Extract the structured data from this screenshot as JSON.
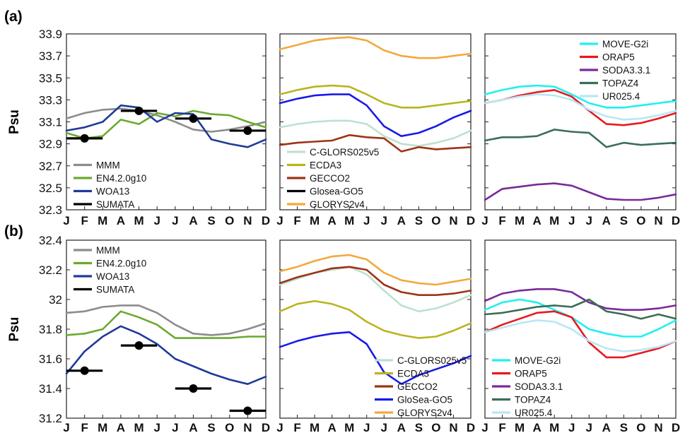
{
  "figure": {
    "colors": {
      "MMM": "#8c8c8c",
      "EN4.2.0g10": "#6aaa2e",
      "WOA13": "#1f3a9a",
      "SUMATA": "#000000",
      "C-GLORS025v5": "#bfe0cf",
      "ECDA3": "#b8b51e",
      "GECCO2": "#9c3415",
      "GloSea-GO5": "#1a1ae6",
      "GLORYS2v4": "#f2a93b",
      "MOVE-G2i": "#20f0f0",
      "ORAP5": "#e8191e",
      "SODA3.3.1": "#7a2a99",
      "TOPAZ4": "#3b6e56",
      "UR025.4": "#b9e6f5"
    }
  },
  "chart_data": [
    {
      "type": "line",
      "panel_label": "(a)",
      "ylabel": "Psu",
      "months": [
        "J",
        "F",
        "M",
        "A",
        "M",
        "J",
        "J",
        "A",
        "S",
        "O",
        "N",
        "D"
      ],
      "yticks": [
        33.9,
        33.7,
        33.5,
        33.3,
        33.1,
        32.9,
        32.7,
        32.5,
        32.3
      ],
      "ylim": [
        32.3,
        33.9
      ],
      "subplots": [
        {
          "legend": [
            "MMM",
            "EN4.2.0g10",
            "WOA13",
            "SUMATA"
          ],
          "legend_position": "bottom-left",
          "series": [
            {
              "name": "MMM",
              "values": [
                33.13,
                33.18,
                33.21,
                33.22,
                33.2,
                33.16,
                33.1,
                33.03,
                33.01,
                33.03,
                33.06,
                33.1
              ]
            },
            {
              "name": "EN4.2.0g10",
              "values": [
                33.0,
                32.95,
                32.97,
                33.12,
                33.08,
                33.18,
                33.15,
                33.2,
                33.17,
                33.16,
                33.1,
                33.05
              ]
            },
            {
              "name": "WOA13",
              "values": [
                33.02,
                33.05,
                33.1,
                33.25,
                33.23,
                33.1,
                33.18,
                33.17,
                32.94,
                32.9,
                32.87,
                32.94
              ]
            }
          ],
          "sumata": [
            {
              "x_month": 2,
              "value": 32.95
            },
            {
              "x_month": 5,
              "value": 33.2
            },
            {
              "x_month": 8,
              "value": 33.13
            },
            {
              "x_month": 11,
              "value": 33.02
            }
          ]
        },
        {
          "legend": [
            "C-GLORS025v5",
            "ECDA3",
            "GECCO2",
            "Glosea-GO5",
            "GLORYS2v4"
          ],
          "legend_position": "bottom-left",
          "series": [
            {
              "name": "C-GLORS025v5",
              "values": [
                33.05,
                33.08,
                33.1,
                33.11,
                33.11,
                33.08,
                32.97,
                32.9,
                32.88,
                32.91,
                32.95,
                33.02
              ]
            },
            {
              "name": "ECDA3",
              "values": [
                33.35,
                33.39,
                33.42,
                33.43,
                33.42,
                33.35,
                33.27,
                33.23,
                33.23,
                33.25,
                33.27,
                33.29
              ]
            },
            {
              "name": "GECCO2",
              "values": [
                32.89,
                32.91,
                32.92,
                32.93,
                32.98,
                32.96,
                32.95,
                32.83,
                32.87,
                32.85,
                32.86,
                32.87
              ]
            },
            {
              "name": "GloSea-GO5",
              "values": [
                33.27,
                33.31,
                33.34,
                33.35,
                33.35,
                33.25,
                33.06,
                32.97,
                33.0,
                33.06,
                33.14,
                33.2
              ]
            },
            {
              "name": "GLORYS2v4",
              "values": [
                33.76,
                33.8,
                33.84,
                33.86,
                33.87,
                33.84,
                33.75,
                33.7,
                33.68,
                33.68,
                33.7,
                33.72
              ]
            }
          ]
        },
        {
          "legend": [
            "MOVE-G2i",
            "ORAP5",
            "SODA3.3.1",
            "TOPAZ4",
            "UR025.4"
          ],
          "legend_position": "top-right",
          "series": [
            {
              "name": "MOVE-G2i",
              "values": [
                33.35,
                33.39,
                33.42,
                33.43,
                33.42,
                33.35,
                33.27,
                33.23,
                33.23,
                33.25,
                33.27,
                33.29
              ]
            },
            {
              "name": "ORAP5",
              "values": [
                33.27,
                33.3,
                33.34,
                33.37,
                33.39,
                33.33,
                33.2,
                33.08,
                33.07,
                33.09,
                33.13,
                33.18
              ]
            },
            {
              "name": "SODA3.3.1",
              "values": [
                32.39,
                32.49,
                32.51,
                32.53,
                32.54,
                32.52,
                32.46,
                32.4,
                32.39,
                32.39,
                32.41,
                32.44
              ]
            },
            {
              "name": "TOPAZ4",
              "values": [
                32.93,
                32.96,
                32.96,
                32.97,
                33.03,
                33.01,
                33.0,
                32.87,
                32.91,
                32.89,
                32.9,
                32.91
              ]
            },
            {
              "name": "UR025.4",
              "values": [
                33.27,
                33.3,
                33.33,
                33.35,
                33.34,
                33.3,
                33.21,
                33.15,
                33.12,
                33.13,
                33.16,
                33.2
              ]
            }
          ]
        }
      ]
    },
    {
      "type": "line",
      "panel_label": "(b)",
      "ylabel": "Psu",
      "months": [
        "J",
        "F",
        "M",
        "A",
        "M",
        "J",
        "J",
        "A",
        "S",
        "O",
        "N",
        "D"
      ],
      "yticks": [
        32.4,
        32.2,
        32,
        31.8,
        31.6,
        31.4,
        31.2
      ],
      "ylim": [
        31.2,
        32.4
      ],
      "subplots": [
        {
          "legend": [
            "MMM",
            "EN4.2.0g10",
            "WOA13",
            "SUMATA"
          ],
          "legend_position": "top-left",
          "series": [
            {
              "name": "MMM",
              "values": [
                31.91,
                31.92,
                31.95,
                31.96,
                31.96,
                31.91,
                31.83,
                31.77,
                31.76,
                31.77,
                31.8,
                31.84
              ]
            },
            {
              "name": "EN4.2.0g10",
              "values": [
                31.76,
                31.77,
                31.8,
                31.92,
                31.88,
                31.83,
                31.74,
                31.74,
                31.74,
                31.74,
                31.75,
                31.75
              ]
            },
            {
              "name": "WOA13",
              "values": [
                31.5,
                31.65,
                31.75,
                31.82,
                31.77,
                31.7,
                31.6,
                31.55,
                31.5,
                31.46,
                31.43,
                31.48
              ]
            }
          ],
          "sumata": [
            {
              "x_month": 2,
              "value": 31.52
            },
            {
              "x_month": 5,
              "value": 31.69
            },
            {
              "x_month": 8,
              "value": 31.4
            },
            {
              "x_month": 11,
              "value": 31.25
            }
          ]
        },
        {
          "legend": [
            "C-GLORS025v5",
            "ECDA3",
            "GECCO2",
            "GloSea-GO5",
            "GLORYS2v4"
          ],
          "legend_position": "bottom-right",
          "series": [
            {
              "name": "C-GLORS025v5",
              "values": [
                32.1,
                32.14,
                32.18,
                32.2,
                32.22,
                32.17,
                32.06,
                31.96,
                31.92,
                31.94,
                31.98,
                32.03
              ]
            },
            {
              "name": "ECDA3",
              "values": [
                31.92,
                31.97,
                31.99,
                31.97,
                31.93,
                31.85,
                31.79,
                31.76,
                31.74,
                31.75,
                31.79,
                31.84
              ]
            },
            {
              "name": "GECCO2",
              "values": [
                32.11,
                32.15,
                32.18,
                32.21,
                32.22,
                32.2,
                32.1,
                32.05,
                32.03,
                32.03,
                32.04,
                32.06
              ]
            },
            {
              "name": "GloSea-GO5",
              "values": [
                31.68,
                31.72,
                31.75,
                31.77,
                31.78,
                31.7,
                31.51,
                31.43,
                31.49,
                31.53,
                31.57,
                31.62
              ]
            },
            {
              "name": "GLORYS2v4",
              "values": [
                32.19,
                32.22,
                32.26,
                32.29,
                32.3,
                32.27,
                32.18,
                32.13,
                32.11,
                32.1,
                32.12,
                32.14
              ]
            }
          ]
        },
        {
          "legend": [
            "MOVE-G2i",
            "ORAP5",
            "SODA3.3.1",
            "TOPAZ4",
            "UR025.4"
          ],
          "legend_position": "bottom-left",
          "series": [
            {
              "name": "MOVE-G2i",
              "values": [
                31.93,
                31.98,
                32.0,
                31.98,
                31.93,
                31.88,
                31.8,
                31.77,
                31.75,
                31.75,
                31.8,
                31.86
              ]
            },
            {
              "name": "ORAP5",
              "values": [
                31.78,
                31.83,
                31.87,
                31.91,
                31.92,
                31.88,
                31.71,
                31.61,
                31.61,
                31.64,
                31.67,
                31.72
              ]
            },
            {
              "name": "SODA3.3.1",
              "values": [
                31.99,
                32.04,
                32.06,
                32.07,
                32.07,
                32.05,
                31.98,
                31.94,
                31.93,
                31.93,
                31.94,
                31.96
              ]
            },
            {
              "name": "TOPAZ4",
              "values": [
                31.9,
                31.91,
                31.93,
                31.95,
                31.96,
                31.95,
                32.0,
                31.92,
                31.9,
                31.87,
                31.9,
                31.87
              ]
            },
            {
              "name": "UR025.4",
              "values": [
                31.78,
                31.81,
                31.84,
                31.86,
                31.85,
                31.8,
                31.72,
                31.67,
                31.65,
                31.66,
                31.68,
                31.72
              ]
            }
          ]
        }
      ]
    }
  ]
}
